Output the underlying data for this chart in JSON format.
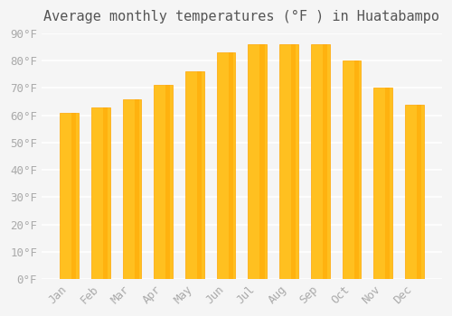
{
  "title": "Average monthly temperatures (°F ) in Huatabampo",
  "months": [
    "Jan",
    "Feb",
    "Mar",
    "Apr",
    "May",
    "Jun",
    "Jul",
    "Aug",
    "Sep",
    "Oct",
    "Nov",
    "Dec"
  ],
  "values": [
    61,
    63,
    66,
    71,
    76,
    83,
    86,
    86,
    86,
    80,
    70,
    64
  ],
  "bar_color_main": "#FFC020",
  "bar_color_edge": "#FFA500",
  "ylim": [
    0,
    90
  ],
  "yticks": [
    0,
    10,
    20,
    30,
    40,
    50,
    60,
    70,
    80,
    90
  ],
  "ytick_labels": [
    "0°F",
    "10°F",
    "20°F",
    "30°F",
    "40°F",
    "50°F",
    "60°F",
    "70°F",
    "80°F",
    "90°F"
  ],
  "background_color": "#f5f5f5",
  "grid_color": "#ffffff",
  "title_fontsize": 11,
  "tick_fontsize": 9,
  "bar_width": 0.6
}
